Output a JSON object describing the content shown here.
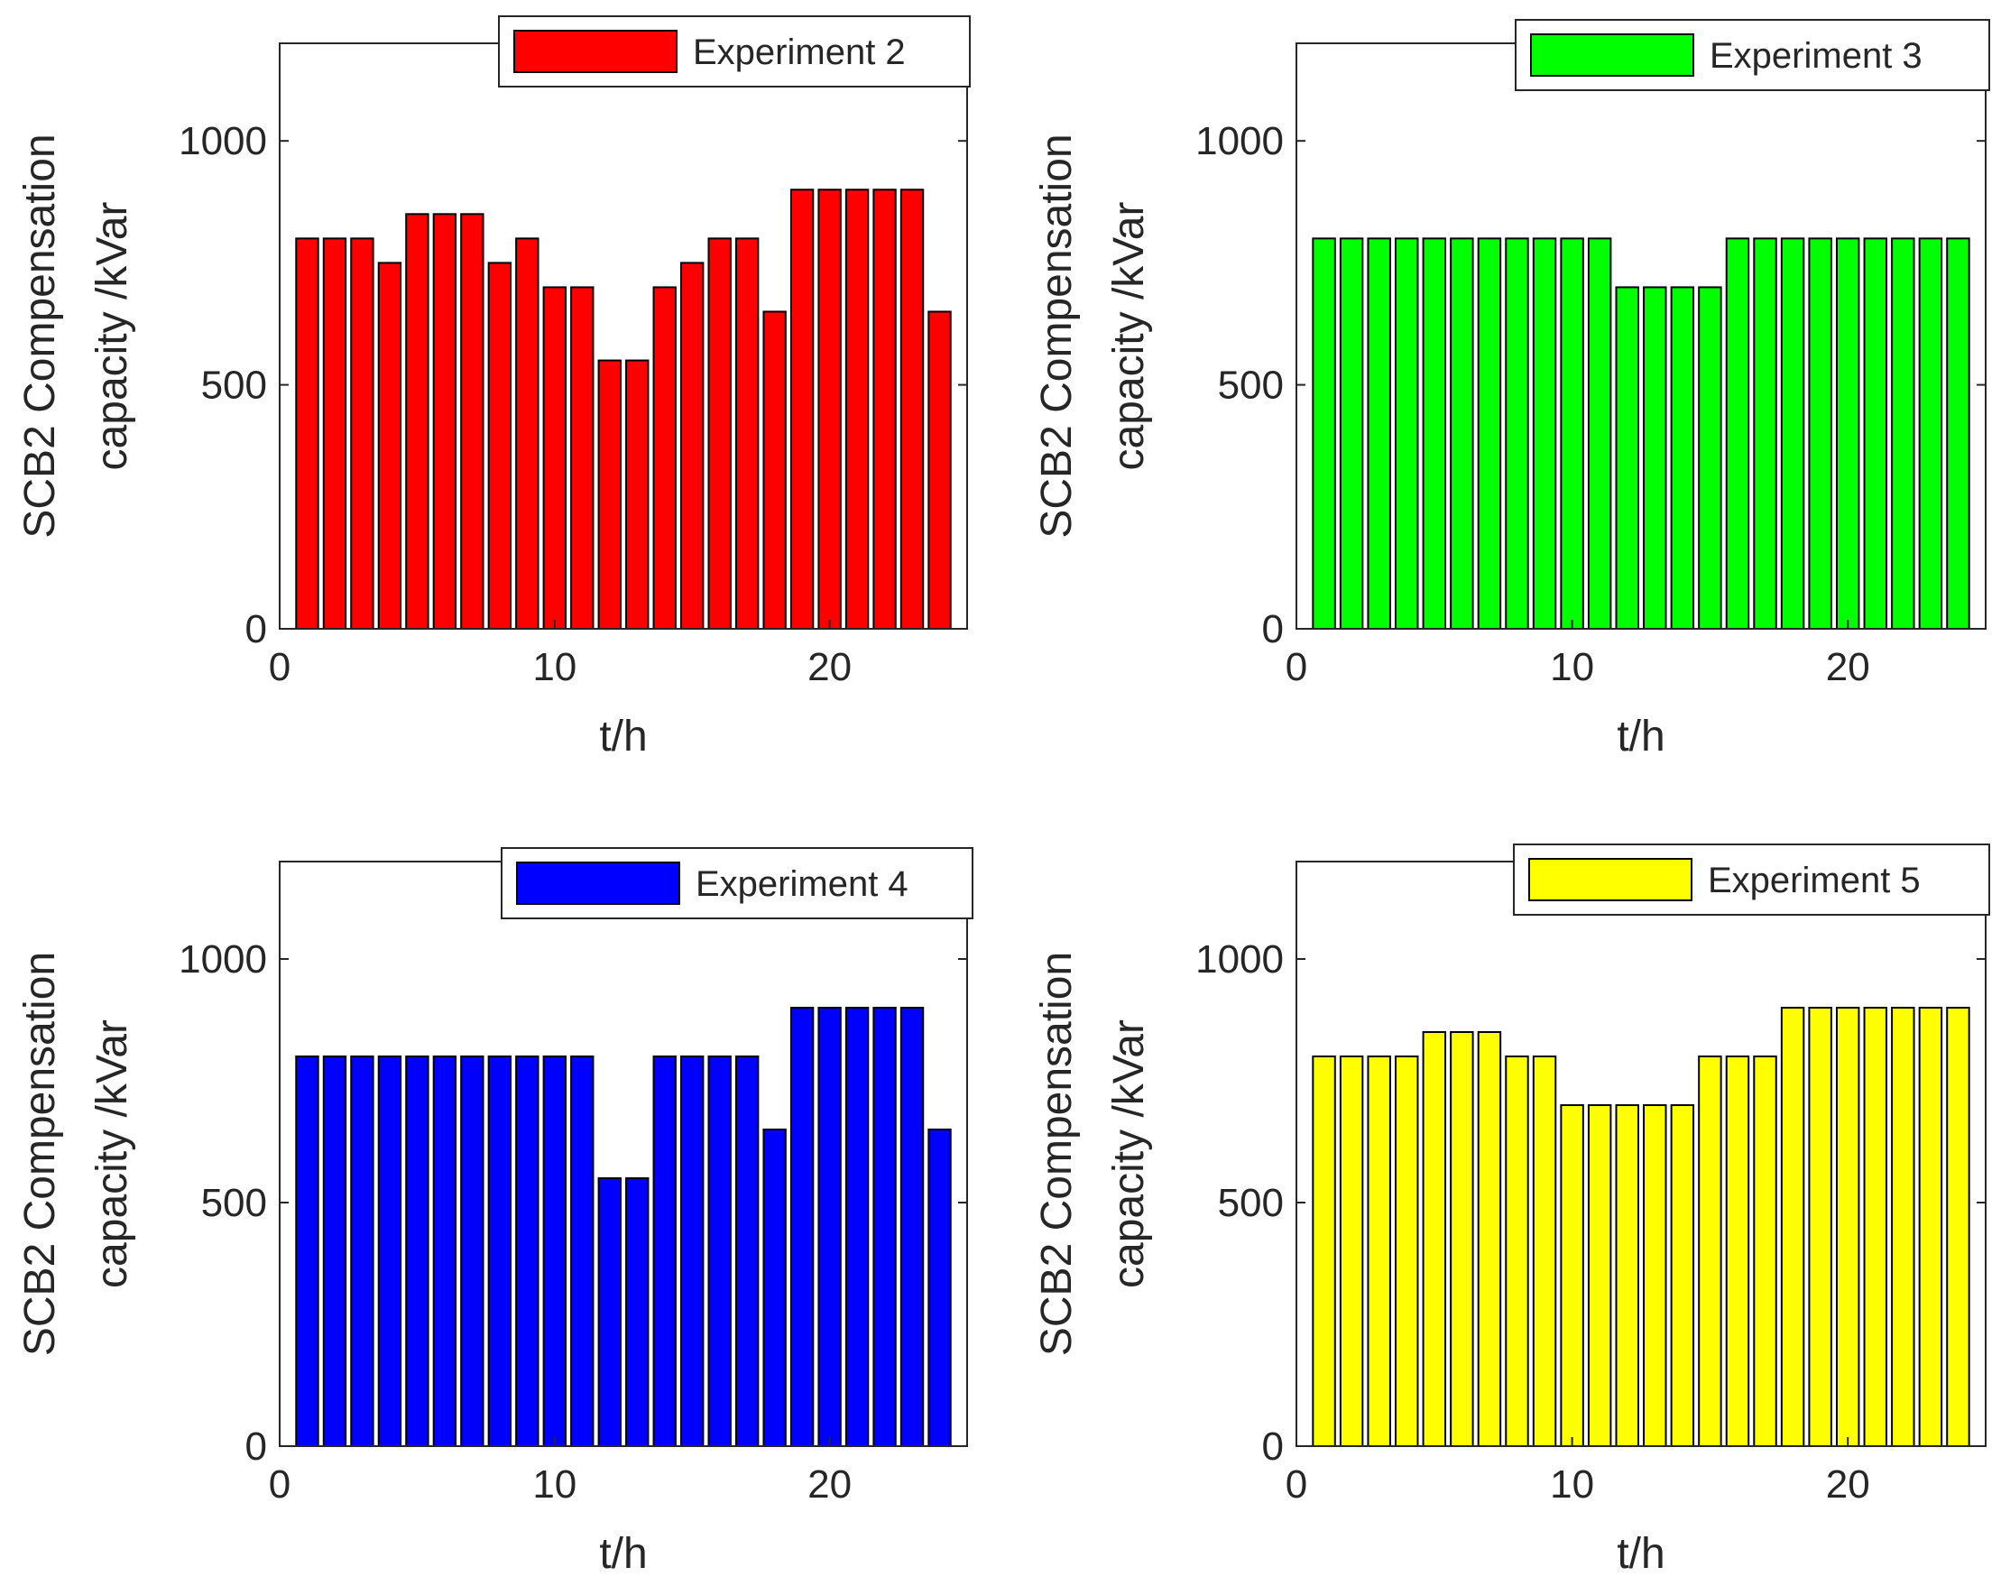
{
  "chart_data": [
    {
      "type": "bar",
      "title": "",
      "xlabel": "t/h",
      "ylabel_lines": [
        "SCB2 Compensation",
        "capacity /kVar"
      ],
      "legend": "Experiment 2",
      "color": "#ff0000",
      "xlim": [
        0,
        25
      ],
      "ylim": [
        0,
        1200
      ],
      "xticks": [
        0,
        10,
        20
      ],
      "yticks": [
        0,
        500,
        1000
      ],
      "x": [
        1,
        2,
        3,
        4,
        5,
        6,
        7,
        8,
        9,
        10,
        11,
        12,
        13,
        14,
        15,
        16,
        17,
        18,
        19,
        20,
        21,
        22,
        23,
        24
      ],
      "values": [
        800,
        800,
        800,
        750,
        850,
        850,
        850,
        750,
        800,
        700,
        700,
        550,
        550,
        700,
        750,
        800,
        800,
        650,
        900,
        900,
        900,
        900,
        900,
        650
      ]
    },
    {
      "type": "bar",
      "title": "",
      "xlabel": "t/h",
      "ylabel_lines": [
        "SCB2 Compensation",
        "capacity /kVar"
      ],
      "legend": "Experiment 3",
      "color": "#00ff00",
      "xlim": [
        0,
        25
      ],
      "ylim": [
        0,
        1200
      ],
      "xticks": [
        0,
        10,
        20
      ],
      "yticks": [
        0,
        500,
        1000
      ],
      "x": [
        1,
        2,
        3,
        4,
        5,
        6,
        7,
        8,
        9,
        10,
        11,
        12,
        13,
        14,
        15,
        16,
        17,
        18,
        19,
        20,
        21,
        22,
        23,
        24
      ],
      "values": [
        800,
        800,
        800,
        800,
        800,
        800,
        800,
        800,
        800,
        800,
        800,
        700,
        700,
        700,
        700,
        800,
        800,
        800,
        800,
        800,
        800,
        800,
        800,
        800
      ]
    },
    {
      "type": "bar",
      "title": "",
      "xlabel": "t/h",
      "ylabel_lines": [
        "SCB2 Compensation",
        "capacity /kVar"
      ],
      "legend": "Experiment 4",
      "color": "#0000ff",
      "xlim": [
        0,
        25
      ],
      "ylim": [
        0,
        1200
      ],
      "xticks": [
        0,
        10,
        20
      ],
      "yticks": [
        0,
        500,
        1000
      ],
      "x": [
        1,
        2,
        3,
        4,
        5,
        6,
        7,
        8,
        9,
        10,
        11,
        12,
        13,
        14,
        15,
        16,
        17,
        18,
        19,
        20,
        21,
        22,
        23,
        24
      ],
      "values": [
        800,
        800,
        800,
        800,
        800,
        800,
        800,
        800,
        800,
        800,
        800,
        550,
        550,
        800,
        800,
        800,
        800,
        650,
        900,
        900,
        900,
        900,
        900,
        650
      ]
    },
    {
      "type": "bar",
      "title": "",
      "xlabel": "t/h",
      "ylabel_lines": [
        "SCB2 Compensation",
        "capacity /kVar"
      ],
      "legend": "Experiment 5",
      "color": "#ffff00",
      "xlim": [
        0,
        25
      ],
      "ylim": [
        0,
        1200
      ],
      "xticks": [
        0,
        10,
        20
      ],
      "yticks": [
        0,
        500,
        1000
      ],
      "x": [
        1,
        2,
        3,
        4,
        5,
        6,
        7,
        8,
        9,
        10,
        11,
        12,
        13,
        14,
        15,
        16,
        17,
        18,
        19,
        20,
        21,
        22,
        23,
        24
      ],
      "values": [
        800,
        800,
        800,
        800,
        850,
        850,
        850,
        800,
        800,
        700,
        700,
        700,
        700,
        700,
        800,
        800,
        800,
        900,
        900,
        900,
        900,
        900,
        900,
        900
      ]
    }
  ]
}
